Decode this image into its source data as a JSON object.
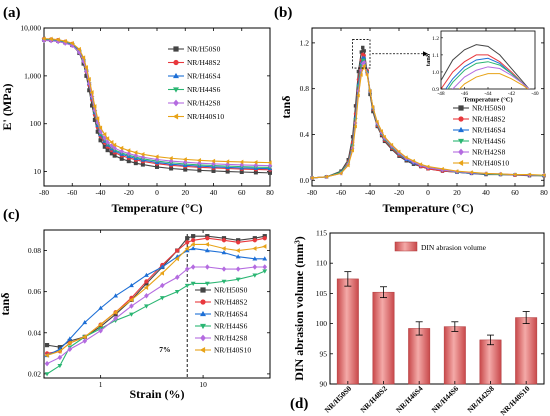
{
  "chart_data": [
    {
      "id": "a",
      "type": "line",
      "panel_letter": "(a)",
      "xlabel": "Temperature (°C)",
      "ylabel": "E' (MPa)",
      "xlim": [
        -80,
        80
      ],
      "ylim": [
        5,
        10000
      ],
      "yscale": "log",
      "xticks": [
        -80,
        -60,
        -40,
        -20,
        0,
        20,
        40,
        60,
        80
      ],
      "yticks": [
        {
          "v": 10000,
          "label": "10,000"
        },
        {
          "v": 1000,
          "label": "1,000"
        },
        {
          "v": 100,
          "label": "100"
        },
        {
          "v": 10,
          "label": "10"
        }
      ],
      "legend_position": "right",
      "x": [
        -80,
        -75,
        -70,
        -65,
        -60,
        -55,
        -52,
        -50,
        -48,
        -46,
        -44,
        -42,
        -40,
        -37,
        -35,
        -32,
        -30,
        -25,
        -20,
        -15,
        -10,
        0,
        10,
        20,
        30,
        40,
        50,
        60,
        70,
        80
      ],
      "series": [
        {
          "name": "NR/H50S0",
          "color": "#444444",
          "marker": "square",
          "y": [
            5700,
            5600,
            5400,
            5000,
            4400,
            3000,
            1800,
            1000,
            500,
            240,
            120,
            68,
            45,
            33,
            28,
            24,
            21.5,
            18.5,
            16.5,
            15,
            14,
            12.5,
            11.6,
            11,
            10.6,
            10.3,
            10,
            9.8,
            9.6,
            9.4
          ]
        },
        {
          "name": "NR/H48S2",
          "color": "#e8383d",
          "marker": "circle",
          "y": [
            5900,
            5800,
            5600,
            5200,
            4700,
            3400,
            2150,
            1250,
            650,
            320,
            155,
            85,
            55,
            40,
            33,
            28,
            25,
            21.5,
            19.3,
            17.6,
            16.3,
            14.6,
            13.5,
            12.8,
            12.3,
            11.9,
            11.6,
            11.3,
            11.1,
            10.9
          ]
        },
        {
          "name": "NR/H46S4",
          "color": "#1d6fd6",
          "marker": "triangle-up",
          "y": [
            5800,
            5700,
            5500,
            5100,
            4600,
            3300,
            2150,
            1300,
            690,
            350,
            170,
            92,
            59,
            43,
            36,
            30,
            27,
            23,
            20.7,
            18.8,
            17.4,
            15.5,
            14.3,
            13.5,
            13,
            12.6,
            12.2,
            11.9,
            11.7,
            11.5
          ]
        },
        {
          "name": "NR/H44S6",
          "color": "#2bb673",
          "marker": "triangle-down",
          "y": [
            5600,
            5500,
            5300,
            4900,
            4400,
            3200,
            2050,
            1250,
            680,
            350,
            175,
            98,
            63,
            46,
            38,
            32,
            28.5,
            24.5,
            22,
            20,
            18.5,
            16.6,
            15.3,
            14.4,
            13.8,
            13.4,
            13,
            12.7,
            12.4,
            12.2
          ]
        },
        {
          "name": "NR/H42S8",
          "color": "#b46be0",
          "marker": "diamond",
          "y": [
            5500,
            5400,
            5200,
            4800,
            4300,
            3100,
            2000,
            1250,
            700,
            370,
            190,
            106,
            68,
            50,
            41,
            34.5,
            31,
            26.5,
            23.8,
            21.7,
            20,
            17.9,
            16.6,
            15.7,
            15,
            14.5,
            14.1,
            13.8,
            13.5,
            13.3
          ]
        },
        {
          "name": "NR/H40S10",
          "color": "#e8a317",
          "marker": "triangle-left",
          "y": [
            6000,
            5900,
            5700,
            5300,
            4800,
            3600,
            2400,
            1500,
            850,
            450,
            230,
            128,
            82,
            60,
            49,
            41,
            36,
            31,
            27.5,
            25,
            23,
            20.5,
            19,
            18,
            17.2,
            16.6,
            16.2,
            15.9,
            15.6,
            15.4
          ]
        }
      ]
    },
    {
      "id": "b",
      "type": "line",
      "panel_letter": "(b)",
      "xlabel": "Temperature (°C)",
      "ylabel": "tanδ",
      "xlim": [
        -80,
        80
      ],
      "ylim": [
        -0.05,
        1.33
      ],
      "xticks": [
        -80,
        -60,
        -40,
        -20,
        0,
        20,
        40,
        60,
        80
      ],
      "yticks": [
        0.0,
        0.4,
        0.8,
        1.2
      ],
      "legend_position": "lower-right",
      "x": [
        -80,
        -70,
        -60,
        -55,
        -52,
        -50,
        -48,
        -46,
        -45,
        -44,
        -42,
        -40,
        -38,
        -35,
        -32,
        -30,
        -25,
        -20,
        -15,
        -10,
        -5,
        0,
        10,
        20,
        30,
        40,
        50,
        60,
        70,
        80
      ],
      "series": [
        {
          "name": "NR/H50S0",
          "color": "#444444",
          "marker": "square",
          "y": [
            0.02,
            0.03,
            0.08,
            0.18,
            0.38,
            0.65,
            0.95,
            1.12,
            1.16,
            1.13,
            0.95,
            0.75,
            0.6,
            0.47,
            0.39,
            0.34,
            0.27,
            0.21,
            0.17,
            0.14,
            0.12,
            0.1,
            0.08,
            0.07,
            0.06,
            0.05,
            0.05,
            0.045,
            0.04,
            0.04
          ]
        },
        {
          "name": "NR/H48S2",
          "color": "#e8383d",
          "marker": "circle",
          "y": [
            0.02,
            0.03,
            0.07,
            0.16,
            0.33,
            0.58,
            0.88,
            1.05,
            1.1,
            1.09,
            0.96,
            0.78,
            0.62,
            0.48,
            0.4,
            0.35,
            0.28,
            0.22,
            0.18,
            0.15,
            0.12,
            0.1,
            0.08,
            0.07,
            0.06,
            0.055,
            0.05,
            0.045,
            0.045,
            0.04
          ]
        },
        {
          "name": "NR/H46S4",
          "color": "#1d6fd6",
          "marker": "triangle-up",
          "y": [
            0.02,
            0.03,
            0.07,
            0.15,
            0.31,
            0.55,
            0.84,
            1.02,
            1.07,
            1.07,
            0.95,
            0.78,
            0.63,
            0.49,
            0.41,
            0.36,
            0.29,
            0.23,
            0.18,
            0.15,
            0.13,
            0.11,
            0.09,
            0.07,
            0.06,
            0.055,
            0.05,
            0.05,
            0.045,
            0.04
          ]
        },
        {
          "name": "NR/H44S6",
          "color": "#2bb673",
          "marker": "triangle-down",
          "y": [
            0.02,
            0.03,
            0.07,
            0.15,
            0.3,
            0.53,
            0.82,
            1.0,
            1.05,
            1.05,
            0.94,
            0.78,
            0.63,
            0.49,
            0.41,
            0.36,
            0.29,
            0.23,
            0.19,
            0.16,
            0.13,
            0.11,
            0.09,
            0.07,
            0.065,
            0.055,
            0.05,
            0.05,
            0.045,
            0.04
          ]
        },
        {
          "name": "NR/H42S8",
          "color": "#b46be0",
          "marker": "diamond",
          "y": [
            0.02,
            0.03,
            0.06,
            0.14,
            0.28,
            0.5,
            0.78,
            0.96,
            1.02,
            1.03,
            0.93,
            0.78,
            0.64,
            0.5,
            0.42,
            0.37,
            0.3,
            0.24,
            0.19,
            0.16,
            0.13,
            0.11,
            0.09,
            0.075,
            0.065,
            0.06,
            0.055,
            0.05,
            0.045,
            0.045
          ]
        },
        {
          "name": "NR/H40S10",
          "color": "#e8a317",
          "marker": "triangle-left",
          "y": [
            0.02,
            0.03,
            0.06,
            0.13,
            0.26,
            0.47,
            0.74,
            0.92,
            0.98,
            1.0,
            0.92,
            0.78,
            0.64,
            0.51,
            0.43,
            0.38,
            0.31,
            0.25,
            0.2,
            0.17,
            0.14,
            0.12,
            0.1,
            0.08,
            0.07,
            0.06,
            0.055,
            0.05,
            0.05,
            0.045
          ]
        }
      ],
      "inset": {
        "xlabel": "Temperature (°C)",
        "ylabel": "tanδ",
        "xlim": [
          -48,
          -40
        ],
        "ylim": [
          0.9,
          1.24
        ],
        "xticks": [
          -48,
          -46,
          -44,
          -42,
          -40
        ],
        "yticks": [
          0.9,
          1.0,
          1.1,
          1.2
        ],
        "x": [
          -48,
          -47,
          -46,
          -45,
          -44,
          -43,
          -42,
          -41,
          -40
        ],
        "series_y": [
          [
            0.95,
            1.07,
            1.13,
            1.16,
            1.15,
            1.1,
            1.02,
            0.94,
            0.86
          ],
          [
            0.9,
            1.0,
            1.06,
            1.1,
            1.1,
            1.06,
            1.0,
            0.93,
            0.86
          ],
          [
            0.86,
            0.96,
            1.03,
            1.07,
            1.08,
            1.05,
            0.99,
            0.93,
            0.86
          ],
          [
            0.84,
            0.94,
            1.01,
            1.05,
            1.06,
            1.04,
            0.99,
            0.93,
            0.87
          ],
          [
            0.8,
            0.9,
            0.97,
            1.01,
            1.03,
            1.02,
            0.98,
            0.93,
            0.87
          ],
          [
            0.76,
            0.86,
            0.93,
            0.97,
            0.99,
            0.99,
            0.96,
            0.92,
            0.87
          ]
        ]
      }
    },
    {
      "id": "c",
      "type": "line",
      "panel_letter": "(c)",
      "xlabel": "Strain (%)",
      "ylabel": "tanδ",
      "xscale": "log",
      "xlim": [
        0.28,
        45
      ],
      "ylim": [
        0.018,
        0.09
      ],
      "xticks": [
        {
          "v": 1,
          "label": "1"
        },
        {
          "v": 10,
          "label": "10"
        }
      ],
      "yticks": [
        0.02,
        0.04,
        0.06,
        0.08
      ],
      "legend_position": "lower-right",
      "annotation": {
        "text": "7%",
        "x": 7
      },
      "x": [
        0.3,
        0.4,
        0.5,
        0.7,
        1.0,
        1.4,
        2.0,
        2.8,
        4.0,
        5.6,
        7.0,
        8.0,
        11,
        16,
        22,
        32,
        40
      ],
      "series": [
        {
          "name": "NR/H50S0",
          "color": "#444444",
          "marker": "square",
          "y": [
            0.034,
            0.033,
            0.036,
            0.038,
            0.043,
            0.049,
            0.056,
            0.064,
            0.072,
            0.08,
            0.086,
            0.087,
            0.087,
            0.086,
            0.085,
            0.086,
            0.087
          ]
        },
        {
          "name": "NR/H48S2",
          "color": "#e8383d",
          "marker": "circle",
          "y": [
            0.03,
            0.031,
            0.035,
            0.038,
            0.044,
            0.05,
            0.057,
            0.065,
            0.073,
            0.08,
            0.084,
            0.085,
            0.086,
            0.085,
            0.084,
            0.085,
            0.086
          ]
        },
        {
          "name": "NR/H46S4",
          "color": "#1d6fd6",
          "marker": "triangle-up",
          "y": [
            0.029,
            0.032,
            0.037,
            0.045,
            0.052,
            0.058,
            0.063,
            0.068,
            0.072,
            0.077,
            0.08,
            0.081,
            0.08,
            0.079,
            0.077,
            0.076,
            0.076
          ]
        },
        {
          "name": "NR/H44S6",
          "color": "#2bb673",
          "marker": "triangle-down",
          "y": [
            0.02,
            0.024,
            0.033,
            0.038,
            0.042,
            0.046,
            0.049,
            0.053,
            0.057,
            0.06,
            0.063,
            0.064,
            0.064,
            0.065,
            0.066,
            0.068,
            0.07
          ]
        },
        {
          "name": "NR/H42S8",
          "color": "#b46be0",
          "marker": "diamond",
          "y": [
            0.025,
            0.028,
            0.032,
            0.036,
            0.041,
            0.047,
            0.053,
            0.058,
            0.063,
            0.067,
            0.071,
            0.072,
            0.072,
            0.071,
            0.071,
            0.072,
            0.072
          ]
        },
        {
          "name": "NR/H40S10",
          "color": "#e8a317",
          "marker": "triangle-left",
          "y": [
            0.029,
            0.031,
            0.035,
            0.038,
            0.044,
            0.05,
            0.056,
            0.062,
            0.069,
            0.076,
            0.081,
            0.083,
            0.083,
            0.081,
            0.08,
            0.081,
            0.082
          ]
        }
      ]
    },
    {
      "id": "d",
      "type": "bar",
      "panel_letter": "(d)",
      "ylabel": "DIN abrasion volume (mm³)",
      "ylim": [
        90,
        115
      ],
      "yticks": [
        90,
        95,
        100,
        105,
        110,
        115
      ],
      "legend": "DIN abrasion volume",
      "legend_position": "top",
      "bar_color": "#e06a6a",
      "categories": [
        "NR/H50S0",
        "NR/H48S2",
        "NR/H46S4",
        "NR/H44S6",
        "NR/H42S8",
        "NR/H40S10"
      ],
      "values": [
        107.4,
        105.2,
        99.2,
        99.5,
        97.3,
        101.0
      ],
      "errors": [
        1.2,
        0.9,
        1.1,
        0.8,
        0.8,
        1.0
      ]
    }
  ]
}
